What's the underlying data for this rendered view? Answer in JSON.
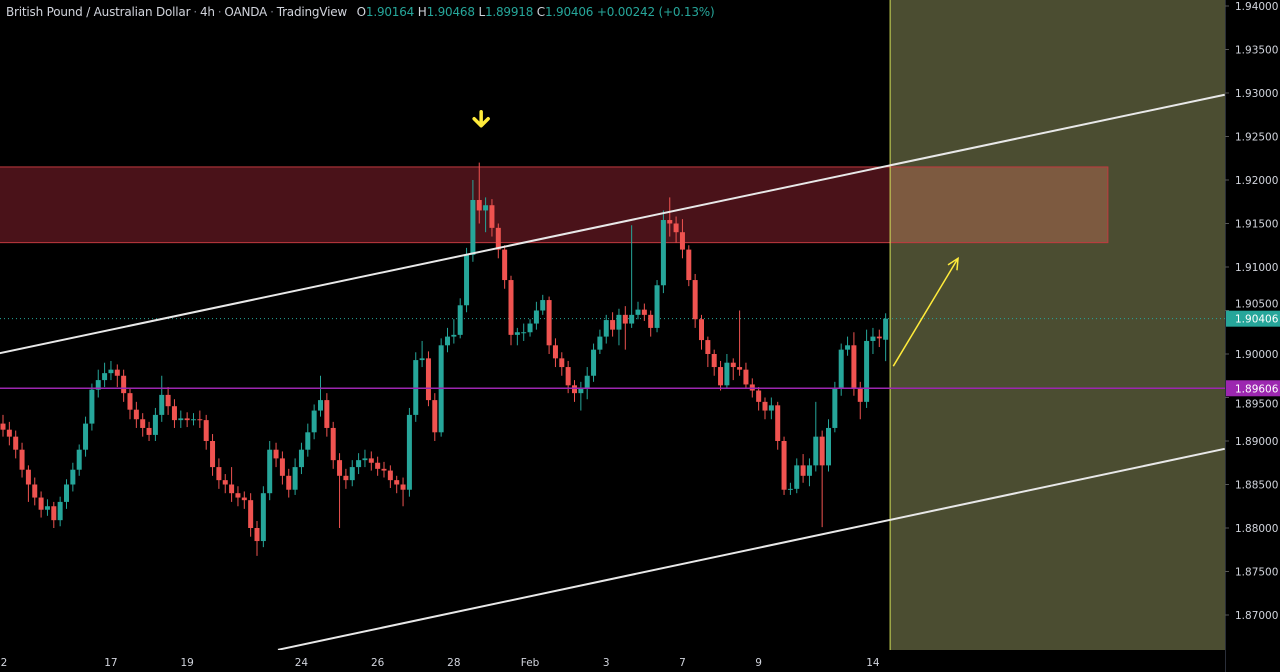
{
  "header": {
    "symbol": "British Pound / Australian Dollar",
    "interval": "4h",
    "exchange": "OANDA",
    "source": "TradingView",
    "o_label": "O",
    "o": "1.90164",
    "h_label": "H",
    "h": "1.90468",
    "l_label": "L",
    "l": "1.89918",
    "c_label": "C",
    "c": "1.90406",
    "change": "+0.00242 (+0.13%)"
  },
  "colors": {
    "background": "#000000",
    "up": "#26a69a",
    "down": "#ef5350",
    "resistance_zone": "#4a1219",
    "resistance_zone_border": "#c0393f",
    "projection_zone": "#4b4d31",
    "projection_overlap": "#7d5a40",
    "channel": "#e8e8e8",
    "support_line": "#9c27b0",
    "marker": "#ffeb3b"
  },
  "chart_data": {
    "type": "candlestick",
    "ylim": [
      1.8675,
      1.9405
    ],
    "y_ticks": [
      "1.87000",
      "1.87500",
      "1.88000",
      "1.88500",
      "1.89000",
      "1.89500",
      "1.90000",
      "1.90500",
      "1.91000",
      "1.91500",
      "1.92000",
      "1.92500",
      "1.93000",
      "1.93500",
      "1.94000"
    ],
    "x_ticks": [
      {
        "label": "2",
        "index": -0.5
      },
      {
        "label": "17",
        "index": 17
      },
      {
        "label": "19",
        "index": 29
      },
      {
        "label": "24",
        "index": 47
      },
      {
        "label": "26",
        "index": 59
      },
      {
        "label": "28",
        "index": 71
      },
      {
        "label": "Feb",
        "index": 83
      },
      {
        "label": "3",
        "index": 95
      },
      {
        "label": "7",
        "index": 107
      },
      {
        "label": "9",
        "index": 119
      },
      {
        "label": "14",
        "index": 137
      }
    ],
    "candles": {
      "open": [
        1.892,
        1.8913,
        1.8905,
        1.889,
        1.8867,
        1.885,
        1.8835,
        1.8821,
        1.8825,
        1.8809,
        1.883,
        1.885,
        1.8867,
        1.889,
        1.892,
        1.8959,
        1.897,
        1.8978,
        1.8982,
        1.8975,
        1.8955,
        1.8936,
        1.8925,
        1.8915,
        1.8907,
        1.893,
        1.8953,
        1.894,
        1.8924,
        1.8926,
        1.8924,
        1.8925,
        1.8924,
        1.89,
        1.887,
        1.8855,
        1.885,
        1.884,
        1.8835,
        1.8832,
        1.88,
        1.8785,
        1.884,
        1.889,
        1.888,
        1.886,
        1.8844,
        1.887,
        1.889,
        1.891,
        1.8935,
        1.8947,
        1.8915,
        1.8878,
        1.886,
        1.8855,
        1.887,
        1.8878,
        1.888,
        1.8875,
        1.8868,
        1.8866,
        1.8855,
        1.885,
        1.8844,
        1.893,
        1.8993,
        1.8995,
        1.8947,
        1.891,
        1.901,
        1.902,
        1.9022,
        1.9056,
        1.9114,
        1.9177,
        1.9165,
        1.9171,
        1.9145,
        1.912,
        1.9085,
        1.9022,
        1.9025,
        1.9025,
        1.9035,
        1.905,
        1.9062,
        1.901,
        1.8995,
        1.8985,
        1.8964,
        1.8955,
        1.896,
        1.8975,
        1.9005,
        1.902,
        1.9039,
        1.9028,
        1.9045,
        1.9035,
        1.9045,
        1.9051,
        1.9045,
        1.903,
        1.9079,
        1.9154,
        1.915,
        1.914,
        1.912,
        1.9085,
        1.904,
        1.9016,
        1.9,
        1.8985,
        1.8964,
        1.899,
        1.8985,
        1.8982,
        1.8965,
        1.8958,
        1.8945,
        1.8935,
        1.8941,
        1.89,
        1.8844,
        1.8845,
        1.8872,
        1.886,
        1.8872,
        1.8905,
        1.8872,
        1.8915,
        1.896,
        1.9005,
        1.901,
        1.896,
        1.8945,
        1.9015,
        1.902,
        1.90164
      ],
      "high": [
        1.893,
        1.8922,
        1.8912,
        1.8898,
        1.8872,
        1.8858,
        1.8842,
        1.8833,
        1.883,
        1.8836,
        1.8856,
        1.8875,
        1.8896,
        1.8928,
        1.8966,
        1.8982,
        1.899,
        1.8992,
        1.8988,
        1.8982,
        1.896,
        1.8945,
        1.8932,
        1.8922,
        1.8938,
        1.8975,
        1.8962,
        1.8948,
        1.8935,
        1.8933,
        1.8932,
        1.8935,
        1.893,
        1.8908,
        1.888,
        1.8862,
        1.887,
        1.8848,
        1.8842,
        1.884,
        1.8808,
        1.8848,
        1.89,
        1.8898,
        1.8888,
        1.8868,
        1.888,
        1.8898,
        1.892,
        1.8942,
        1.8975,
        1.8955,
        1.8922,
        1.8886,
        1.8868,
        1.8878,
        1.8886,
        1.889,
        1.8888,
        1.8882,
        1.8876,
        1.8872,
        1.886,
        1.8858,
        1.8938,
        1.9002,
        1.9015,
        1.9003,
        1.8955,
        1.9018,
        1.903,
        1.904,
        1.9064,
        1.9122,
        1.92,
        1.922,
        1.918,
        1.9178,
        1.915,
        1.9125,
        1.909,
        1.903,
        1.9035,
        1.904,
        1.906,
        1.9068,
        1.9066,
        1.9018,
        1.9002,
        1.8992,
        1.897,
        1.8968,
        1.8985,
        1.9012,
        1.9028,
        1.9045,
        1.9048,
        1.9052,
        1.9055,
        1.9148,
        1.906,
        1.9058,
        1.905,
        1.9085,
        1.9165,
        1.918,
        1.9158,
        1.9155,
        1.9125,
        1.9092,
        1.9045,
        1.902,
        1.9005,
        1.8992,
        1.9,
        1.8995,
        1.905,
        1.899,
        1.8972,
        1.8962,
        1.895,
        1.895,
        1.8945,
        1.8905,
        1.8852,
        1.888,
        1.8885,
        1.888,
        1.8945,
        1.8912,
        1.8925,
        1.8968,
        1.9012,
        1.902,
        1.9025,
        1.8968,
        1.9028,
        1.903,
        1.9028,
        1.90468
      ],
      "low": [
        1.8905,
        1.8895,
        1.888,
        1.8858,
        1.883,
        1.8826,
        1.8812,
        1.8814,
        1.88,
        1.8802,
        1.8822,
        1.8842,
        1.886,
        1.8882,
        1.8912,
        1.895,
        1.8962,
        1.897,
        1.8962,
        1.8945,
        1.8925,
        1.8915,
        1.8905,
        1.89,
        1.89,
        1.8922,
        1.893,
        1.8915,
        1.8915,
        1.8916,
        1.8918,
        1.8915,
        1.889,
        1.886,
        1.8845,
        1.884,
        1.883,
        1.8825,
        1.8822,
        1.879,
        1.8768,
        1.8778,
        1.8832,
        1.887,
        1.885,
        1.8835,
        1.8838,
        1.8862,
        1.8882,
        1.8902,
        1.8928,
        1.8905,
        1.8868,
        1.88,
        1.8845,
        1.8848,
        1.8862,
        1.887,
        1.8866,
        1.886,
        1.8858,
        1.8846,
        1.884,
        1.8825,
        1.8836,
        1.8922,
        1.8985,
        1.894,
        1.89,
        1.8905,
        1.9002,
        1.9012,
        1.9018,
        1.9048,
        1.9106,
        1.915,
        1.914,
        1.9135,
        1.911,
        1.9075,
        1.901,
        1.901,
        1.9015,
        1.902,
        1.9028,
        1.9045,
        1.9,
        1.8985,
        1.8975,
        1.8955,
        1.8945,
        1.8935,
        1.8948,
        1.8968,
        1.9,
        1.9012,
        1.902,
        1.901,
        1.9005,
        1.903,
        1.904,
        1.9038,
        1.902,
        1.9025,
        1.907,
        1.9135,
        1.9128,
        1.911,
        1.9078,
        1.903,
        1.9005,
        1.8985,
        1.8975,
        1.8958,
        1.896,
        1.897,
        1.8975,
        1.896,
        1.895,
        1.8935,
        1.8925,
        1.8925,
        1.889,
        1.8838,
        1.8838,
        1.884,
        1.8852,
        1.8848,
        1.8865,
        1.8801,
        1.8865,
        1.891,
        1.8952,
        1.8998,
        1.8952,
        1.8925,
        1.8938,
        1.9,
        1.9008,
        1.89918
      ],
      "close": [
        1.8913,
        1.8905,
        1.889,
        1.8867,
        1.885,
        1.8835,
        1.8821,
        1.8825,
        1.8809,
        1.883,
        1.885,
        1.8867,
        1.889,
        1.892,
        1.8959,
        1.897,
        1.8978,
        1.8982,
        1.8975,
        1.8955,
        1.8936,
        1.8925,
        1.8915,
        1.8907,
        1.893,
        1.8953,
        1.894,
        1.8924,
        1.8926,
        1.8924,
        1.8925,
        1.8924,
        1.89,
        1.887,
        1.8855,
        1.885,
        1.884,
        1.8835,
        1.8832,
        1.88,
        1.8785,
        1.884,
        1.889,
        1.888,
        1.886,
        1.8844,
        1.887,
        1.889,
        1.891,
        1.8935,
        1.8947,
        1.8915,
        1.8878,
        1.886,
        1.8855,
        1.887,
        1.8878,
        1.888,
        1.8875,
        1.8868,
        1.8866,
        1.8855,
        1.885,
        1.8844,
        1.893,
        1.8993,
        1.8995,
        1.8947,
        1.891,
        1.901,
        1.902,
        1.9022,
        1.9056,
        1.9114,
        1.9177,
        1.9165,
        1.9171,
        1.9145,
        1.912,
        1.9085,
        1.9022,
        1.9025,
        1.9025,
        1.9035,
        1.905,
        1.9062,
        1.901,
        1.8995,
        1.8985,
        1.8964,
        1.8955,
        1.896,
        1.8975,
        1.9005,
        1.902,
        1.9039,
        1.9028,
        1.9045,
        1.9035,
        1.9045,
        1.9051,
        1.9045,
        1.903,
        1.9079,
        1.9154,
        1.915,
        1.914,
        1.912,
        1.9085,
        1.904,
        1.9016,
        1.9,
        1.8985,
        1.8964,
        1.899,
        1.8985,
        1.8982,
        1.8965,
        1.8958,
        1.8945,
        1.8935,
        1.8941,
        1.89,
        1.8844,
        1.8845,
        1.8872,
        1.886,
        1.8872,
        1.8905,
        1.8872,
        1.8915,
        1.896,
        1.9005,
        1.901,
        1.896,
        1.8945,
        1.9015,
        1.902,
        1.9018,
        1.90406
      ]
    },
    "current_price": {
      "value": 1.90406,
      "label": "1.90406"
    },
    "support_line": {
      "value": 1.89606,
      "label": "1.89606"
    },
    "resistance_zone": {
      "top": 1.9215,
      "bottom": 1.9128,
      "from_index": -0.5,
      "to_index": 174
    },
    "channel_upper": {
      "from": [
        -0.5,
        1.9001
      ],
      "to": [
        192.4,
        1.9298
      ]
    },
    "channel_lower": {
      "from": [
        43.3,
        1.866
      ],
      "to": [
        192.4,
        1.8891
      ]
    },
    "projection_start_index": 139.7,
    "projection_arrow": {
      "from": [
        140.2,
        1.8986
      ],
      "to": [
        150.4,
        1.911
      ]
    },
    "down_arrow_marker": {
      "index": 75.3,
      "price": 1.9267
    }
  }
}
